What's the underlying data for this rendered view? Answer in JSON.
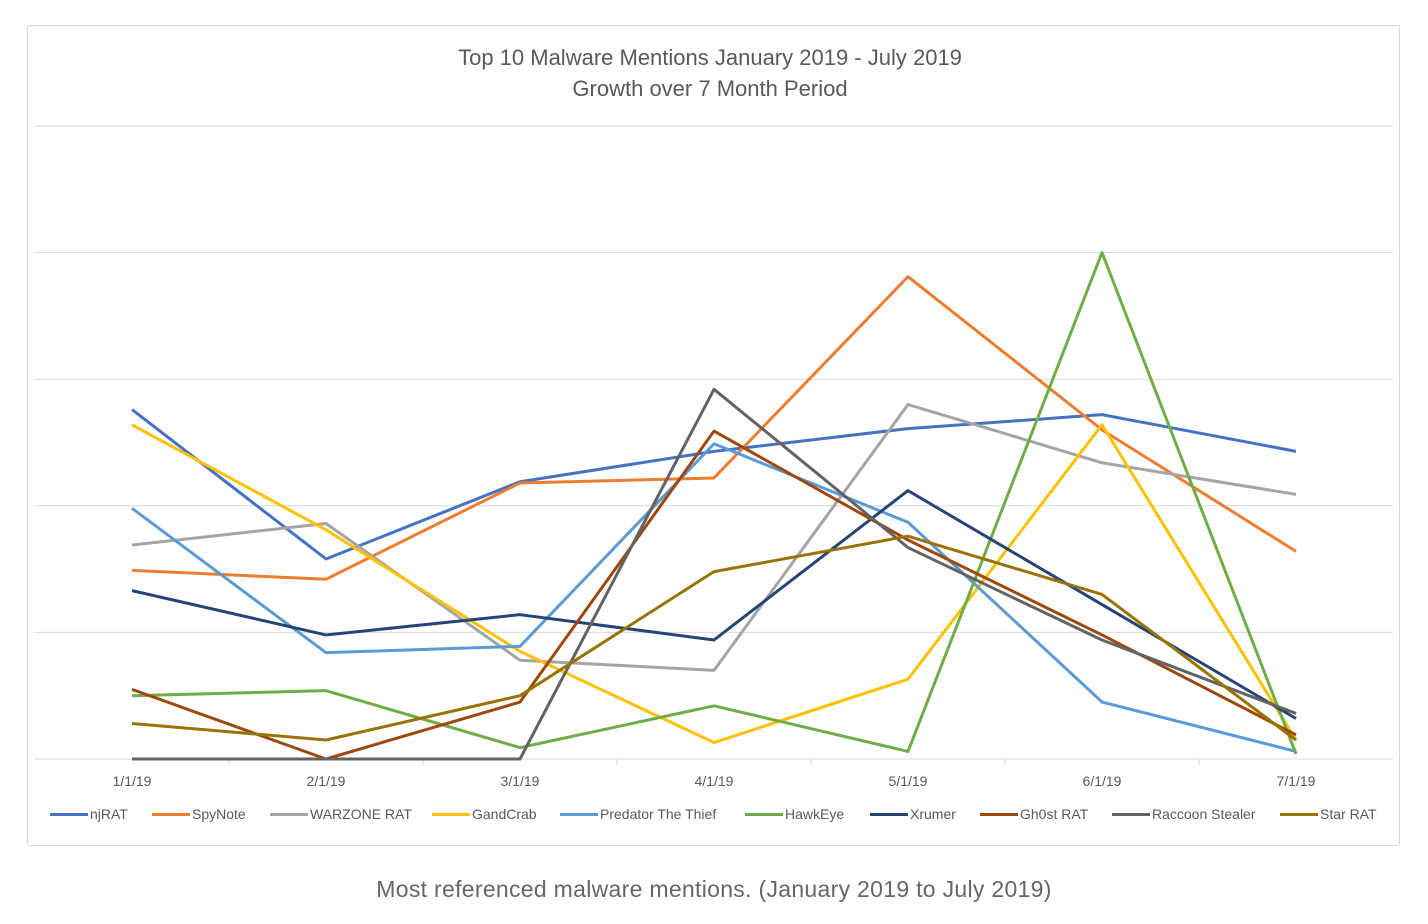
{
  "chart_data": {
    "type": "line",
    "title": "Top 10 Malware Mentions January 2019 - July 2019",
    "subtitle": "Growth over 7 Month Period",
    "xlabel": "",
    "ylabel": "",
    "categories": [
      "1/1/19",
      "2/1/19",
      "3/1/19",
      "4/1/19",
      "5/1/19",
      "6/1/19",
      "7/1/19"
    ],
    "ylim": [
      0,
      5
    ],
    "y_tick_labels_shown": false,
    "grid": true,
    "legend": "bottom",
    "series": [
      {
        "name": "njRAT",
        "color": "#4472c4",
        "values": [
          2.76,
          1.58,
          2.19,
          2.43,
          2.61,
          2.72,
          2.43
        ]
      },
      {
        "name": "SpyNote",
        "color": "#ed7d31",
        "values": [
          1.49,
          1.42,
          2.18,
          2.22,
          3.81,
          2.6,
          1.64
        ]
      },
      {
        "name": "WARZONE RAT",
        "color": "#a5a5a5",
        "values": [
          1.69,
          1.86,
          0.78,
          0.7,
          2.8,
          2.34,
          2.09
        ]
      },
      {
        "name": "GandCrab",
        "color": "#ffc000",
        "values": [
          2.64,
          1.81,
          0.85,
          0.13,
          0.63,
          2.64,
          0.15
        ]
      },
      {
        "name": "Predator The Thief",
        "color": "#5b9bd5",
        "values": [
          1.98,
          0.84,
          0.89,
          2.49,
          1.87,
          0.45,
          0.06
        ]
      },
      {
        "name": "HawkEye",
        "color": "#70ad47",
        "values": [
          0.5,
          0.54,
          0.09,
          0.42,
          0.06,
          4.0,
          0.04
        ]
      },
      {
        "name": "Xrumer",
        "color": "#264478",
        "values": [
          1.33,
          0.98,
          1.14,
          0.94,
          2.12,
          1.22,
          0.32
        ]
      },
      {
        "name": "Gh0st RAT",
        "color": "#9e480e",
        "values": [
          0.55,
          0.0,
          0.45,
          2.59,
          1.73,
          0.98,
          0.19
        ]
      },
      {
        "name": "Raccoon Stealer",
        "color": "#636363",
        "values": [
          0.0,
          0.0,
          0.0,
          2.92,
          1.67,
          0.94,
          0.36
        ]
      },
      {
        "name": "Star RAT",
        "color": "#997300",
        "values": [
          0.28,
          0.15,
          0.5,
          1.48,
          1.76,
          1.3,
          0.15
        ]
      }
    ]
  },
  "caption": "Most referenced malware mentions. (January 2019 to July 2019)"
}
